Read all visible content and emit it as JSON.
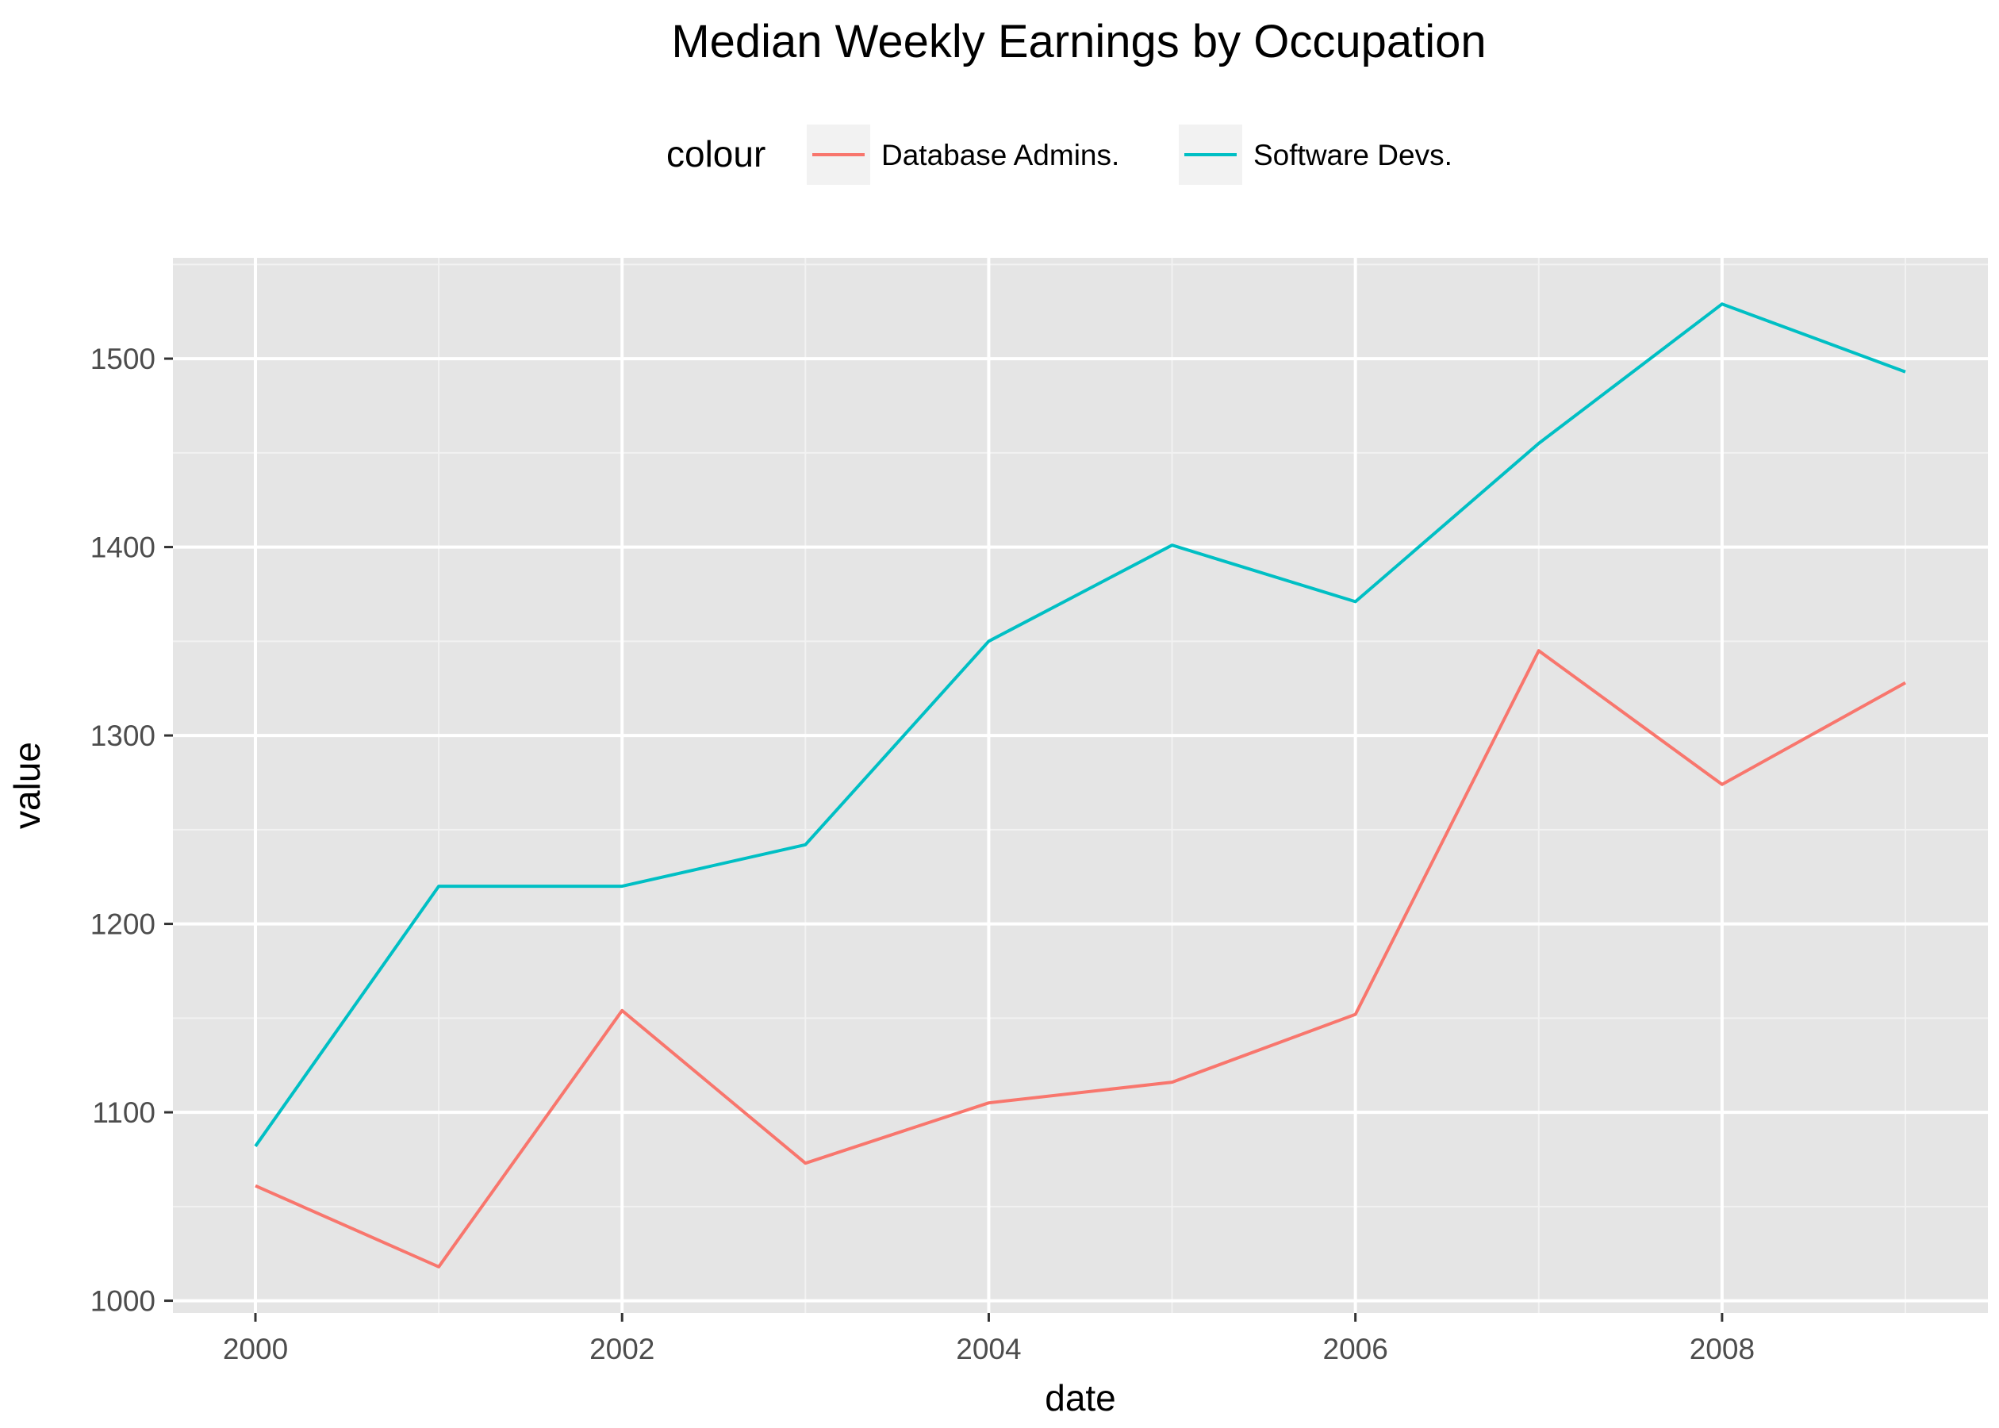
{
  "chart_data": {
    "type": "line",
    "title": "Median Weekly Earnings by Occupation",
    "xlabel": "date",
    "ylabel": "value",
    "legend": {
      "title": "colour",
      "placement": "top"
    },
    "x": [
      2000,
      2001,
      2002,
      2003,
      2004,
      2005,
      2006,
      2007,
      2008,
      2009
    ],
    "series": [
      {
        "name": "Database Admins.",
        "color": "#F8766D",
        "values": [
          1061,
          1018,
          1154,
          1073,
          1105,
          1116,
          1152,
          1345,
          1274,
          1328
        ]
      },
      {
        "name": "Software Devs.",
        "color": "#00BFC4",
        "values": [
          1082,
          1220,
          1220,
          1242,
          1350,
          1401,
          1371,
          1455,
          1529,
          1493
        ]
      }
    ],
    "xlim": [
      1999.55,
      2009.45
    ],
    "ylim": [
      993.5,
      1553.5
    ],
    "x_ticks": [
      2000,
      2002,
      2004,
      2006,
      2008
    ],
    "x_tick_labels": [
      "2000",
      "2002",
      "2004",
      "2006",
      "2008"
    ],
    "y_ticks": [
      1000,
      1100,
      1200,
      1300,
      1400,
      1500
    ],
    "y_tick_labels": [
      "1000",
      "1100",
      "1200",
      "1300",
      "1400",
      "1500"
    ],
    "grid": true,
    "colors": {
      "panel_background": "#E5E5E5",
      "grid_major": "#FFFFFF",
      "grid_minor": "#F2F2F2",
      "legend_key_background": "#F2F2F2",
      "tick_mark": "#333333"
    }
  }
}
